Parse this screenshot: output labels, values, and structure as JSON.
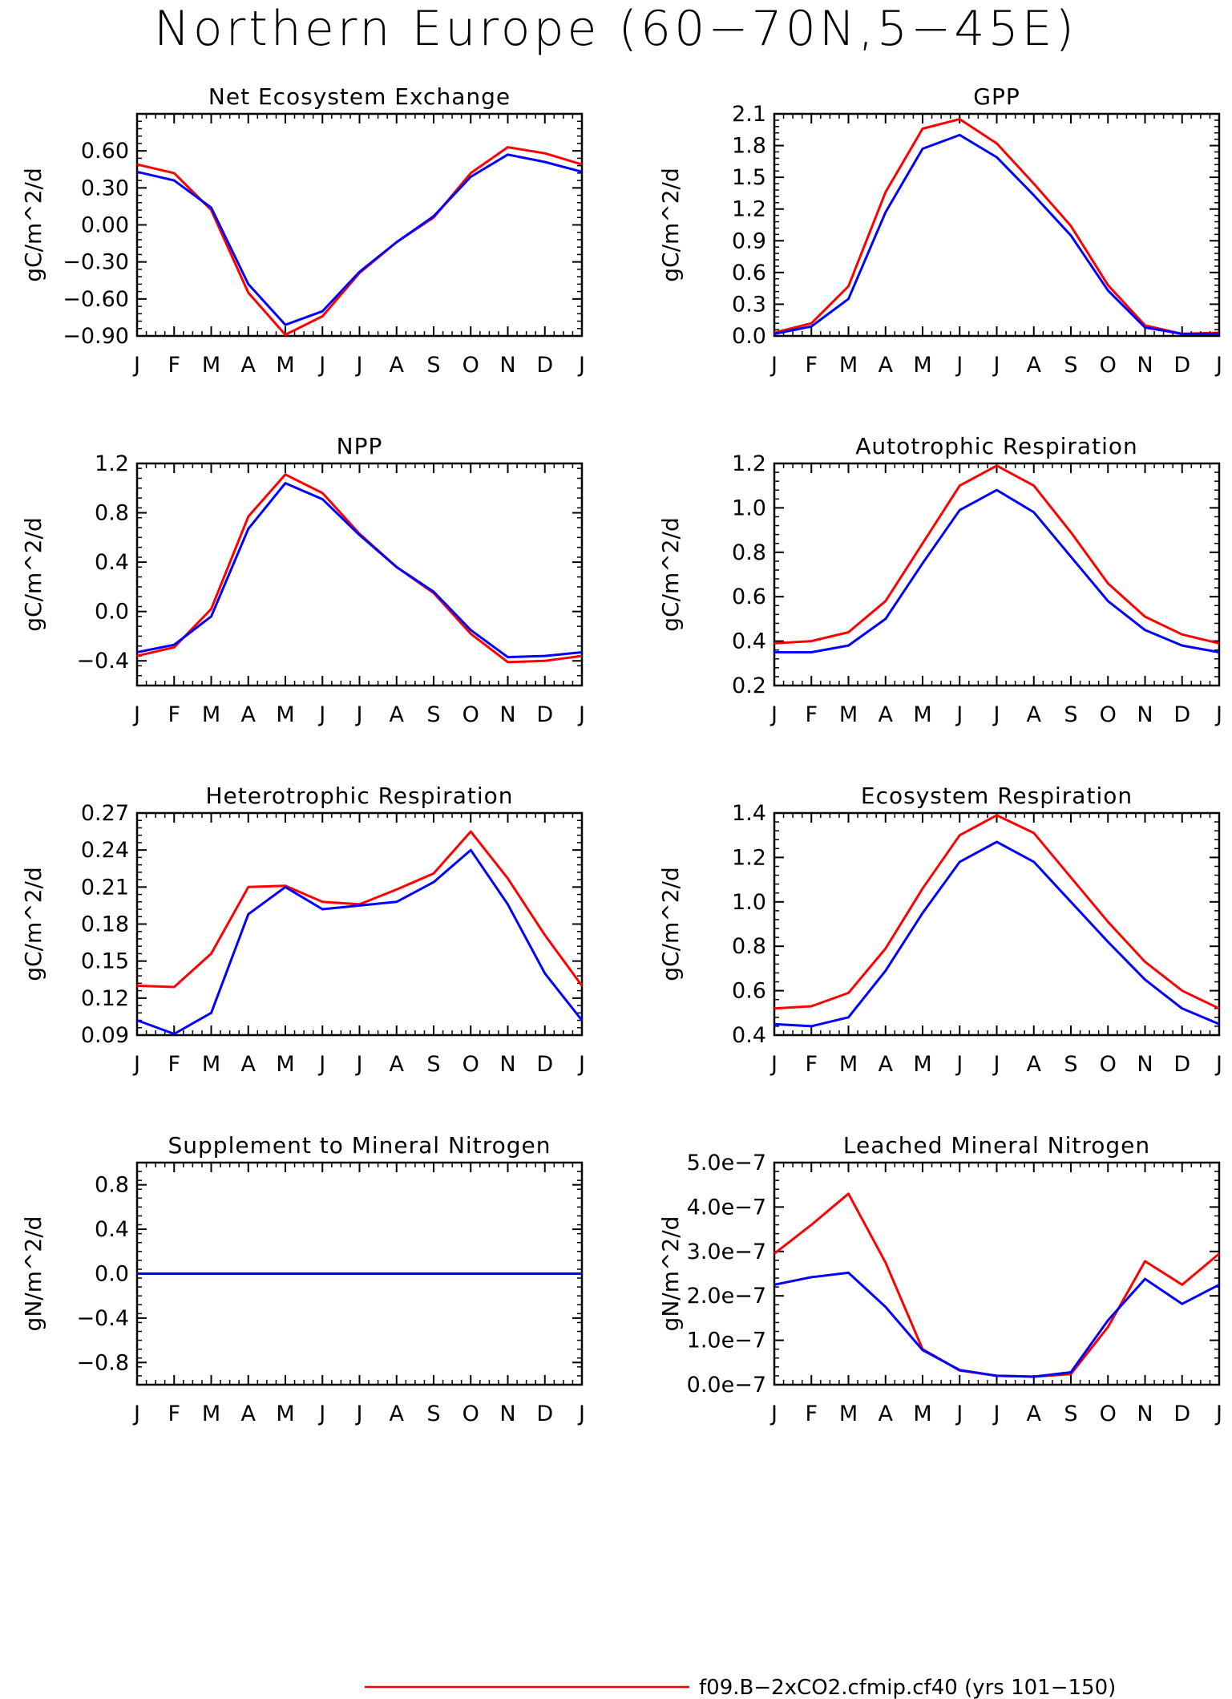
{
  "figure": {
    "title": "Northern Europe (60−70N,5−45E)"
  },
  "legend": [
    {
      "label": "f09.B−2xCO2.cfmip.cf40 (yrs 101−150)",
      "color": "#ff0000"
    }
  ],
  "colors": {
    "red_series": "#ff0000",
    "blue_series": "#0000ff",
    "axes": "#000000"
  },
  "chart_data": [
    {
      "type": "line",
      "title": "Net Ecosystem Exchange",
      "ylabel": "gC/m^2/d",
      "categories": [
        "J",
        "F",
        "M",
        "A",
        "M",
        "J",
        "J",
        "A",
        "S",
        "O",
        "N",
        "D",
        "J"
      ],
      "ylim": [
        -0.9,
        0.9
      ],
      "yticks": [
        -0.9,
        -0.6,
        -0.3,
        0.0,
        0.3,
        0.6
      ],
      "ytick_labels": [
        "−0.90",
        "−0.60",
        "−0.30",
        "0.00",
        "0.30",
        "0.60"
      ],
      "series": [
        {
          "color": "#ff0000",
          "values": [
            0.49,
            0.42,
            0.12,
            -0.55,
            -0.89,
            -0.74,
            -0.39,
            -0.14,
            0.06,
            0.42,
            0.63,
            0.58,
            0.49
          ]
        },
        {
          "color": "#0000ff",
          "values": [
            0.43,
            0.36,
            0.14,
            -0.48,
            -0.81,
            -0.7,
            -0.38,
            -0.14,
            0.07,
            0.39,
            0.57,
            0.51,
            0.43
          ]
        }
      ]
    },
    {
      "type": "line",
      "title": "GPP",
      "ylabel": "gC/m^2/d",
      "categories": [
        "J",
        "F",
        "M",
        "A",
        "M",
        "J",
        "J",
        "A",
        "S",
        "O",
        "N",
        "D",
        "J"
      ],
      "ylim": [
        0.0,
        2.1
      ],
      "yticks": [
        0.0,
        0.3,
        0.6,
        0.9,
        1.2,
        1.5,
        1.8,
        2.1
      ],
      "ytick_labels": [
        "0.0",
        "0.3",
        "0.6",
        "0.9",
        "1.2",
        "1.5",
        "1.8",
        "2.1"
      ],
      "series": [
        {
          "color": "#ff0000",
          "values": [
            0.03,
            0.12,
            0.47,
            1.36,
            1.96,
            2.05,
            1.82,
            1.44,
            1.04,
            0.48,
            0.1,
            0.02,
            0.03
          ]
        },
        {
          "color": "#0000ff",
          "values": [
            0.02,
            0.09,
            0.35,
            1.17,
            1.77,
            1.9,
            1.69,
            1.33,
            0.95,
            0.43,
            0.08,
            0.02,
            0.02
          ]
        }
      ]
    },
    {
      "type": "line",
      "title": "NPP",
      "ylabel": "gC/m^2/d",
      "categories": [
        "J",
        "F",
        "M",
        "A",
        "M",
        "J",
        "J",
        "A",
        "S",
        "O",
        "N",
        "D",
        "J"
      ],
      "ylim": [
        -0.6,
        1.2
      ],
      "yticks": [
        -0.4,
        0.0,
        0.4,
        0.8,
        1.2
      ],
      "ytick_labels": [
        "−0.4",
        "0.0",
        "0.4",
        "0.8",
        "1.2"
      ],
      "series": [
        {
          "color": "#ff0000",
          "values": [
            -0.36,
            -0.29,
            0.02,
            0.77,
            1.11,
            0.96,
            0.63,
            0.36,
            0.15,
            -0.18,
            -0.41,
            -0.4,
            -0.36
          ]
        },
        {
          "color": "#0000ff",
          "values": [
            -0.33,
            -0.27,
            -0.04,
            0.67,
            1.04,
            0.91,
            0.62,
            0.36,
            0.16,
            -0.15,
            -0.37,
            -0.36,
            -0.33
          ]
        }
      ]
    },
    {
      "type": "line",
      "title": "Autotrophic Respiration",
      "ylabel": "gC/m^2/d",
      "categories": [
        "J",
        "F",
        "M",
        "A",
        "M",
        "J",
        "J",
        "A",
        "S",
        "O",
        "N",
        "D",
        "J"
      ],
      "ylim": [
        0.2,
        1.2
      ],
      "yticks": [
        0.2,
        0.4,
        0.6,
        0.8,
        1.0,
        1.2
      ],
      "ytick_labels": [
        "0.2",
        "0.4",
        "0.6",
        "0.8",
        "1.0",
        "1.2"
      ],
      "series": [
        {
          "color": "#ff0000",
          "values": [
            0.39,
            0.4,
            0.44,
            0.58,
            0.84,
            1.1,
            1.19,
            1.1,
            0.89,
            0.66,
            0.51,
            0.43,
            0.39
          ]
        },
        {
          "color": "#0000ff",
          "values": [
            0.35,
            0.35,
            0.38,
            0.5,
            0.75,
            0.99,
            1.08,
            0.98,
            0.78,
            0.58,
            0.45,
            0.38,
            0.35
          ]
        }
      ]
    },
    {
      "type": "line",
      "title": "Heterotrophic Respiration",
      "ylabel": "gC/m^2/d",
      "categories": [
        "J",
        "F",
        "M",
        "A",
        "M",
        "J",
        "J",
        "A",
        "S",
        "O",
        "N",
        "D",
        "J"
      ],
      "ylim": [
        0.09,
        0.27
      ],
      "yticks": [
        0.09,
        0.12,
        0.15,
        0.18,
        0.21,
        0.24,
        0.27
      ],
      "ytick_labels": [
        "0.09",
        "0.12",
        "0.15",
        "0.18",
        "0.21",
        "0.24",
        "0.27"
      ],
      "series": [
        {
          "color": "#ff0000",
          "values": [
            0.13,
            0.129,
            0.156,
            0.21,
            0.211,
            0.198,
            0.196,
            0.208,
            0.221,
            0.255,
            0.217,
            0.171,
            0.13
          ]
        },
        {
          "color": "#0000ff",
          "values": [
            0.102,
            0.091,
            0.108,
            0.188,
            0.21,
            0.192,
            0.195,
            0.198,
            0.214,
            0.24,
            0.196,
            0.14,
            0.102
          ]
        }
      ]
    },
    {
      "type": "line",
      "title": "Ecosystem Respiration",
      "ylabel": "gC/m^2/d",
      "categories": [
        "J",
        "F",
        "M",
        "A",
        "M",
        "J",
        "J",
        "A",
        "S",
        "O",
        "N",
        "D",
        "J"
      ],
      "ylim": [
        0.4,
        1.4
      ],
      "yticks": [
        0.4,
        0.6,
        0.8,
        1.0,
        1.2,
        1.4
      ],
      "ytick_labels": [
        "0.4",
        "0.6",
        "0.8",
        "1.0",
        "1.2",
        "1.4"
      ],
      "series": [
        {
          "color": "#ff0000",
          "values": [
            0.52,
            0.53,
            0.59,
            0.79,
            1.06,
            1.3,
            1.39,
            1.31,
            1.11,
            0.91,
            0.73,
            0.6,
            0.52
          ]
        },
        {
          "color": "#0000ff",
          "values": [
            0.45,
            0.44,
            0.48,
            0.69,
            0.95,
            1.18,
            1.27,
            1.18,
            1.0,
            0.82,
            0.65,
            0.52,
            0.45
          ]
        }
      ]
    },
    {
      "type": "line",
      "title": "Supplement to Mineral Nitrogen",
      "ylabel": "gN/m^2/d",
      "categories": [
        "J",
        "F",
        "M",
        "A",
        "M",
        "J",
        "J",
        "A",
        "S",
        "O",
        "N",
        "D",
        "J"
      ],
      "ylim": [
        -1.0,
        1.0
      ],
      "yticks": [
        -0.8,
        -0.4,
        0.0,
        0.4,
        0.8
      ],
      "ytick_labels": [
        "−0.8",
        "−0.4",
        "0.0",
        "0.4",
        "0.8"
      ],
      "series": [
        {
          "color": "#ff0000",
          "values": [
            0,
            0,
            0,
            0,
            0,
            0,
            0,
            0,
            0,
            0,
            0,
            0,
            0
          ]
        },
        {
          "color": "#0000ff",
          "values": [
            0,
            0,
            0,
            0,
            0,
            0,
            0,
            0,
            0,
            0,
            0,
            0,
            0
          ]
        }
      ]
    },
    {
      "type": "line",
      "title": "Leached Mineral Nitrogen",
      "ylabel": "gN/m^2/d",
      "categories": [
        "J",
        "F",
        "M",
        "A",
        "M",
        "J",
        "J",
        "A",
        "S",
        "O",
        "N",
        "D",
        "J"
      ],
      "ylim": [
        0.0,
        5e-07
      ],
      "yticks": [
        0.0,
        1e-07,
        2e-07,
        3e-07,
        4e-07,
        5e-07
      ],
      "ytick_labels": [
        "0.0e−7",
        "1.0e−7",
        "2.0e−7",
        "3.0e−7",
        "4.0e−7",
        "5.0e−7"
      ],
      "series": [
        {
          "color": "#ff0000",
          "values": [
            2.95e-07,
            3.6e-07,
            4.3e-07,
            2.75e-07,
            8e-08,
            3.2e-08,
            2e-08,
            1.8e-08,
            2.4e-08,
            1.3e-07,
            2.78e-07,
            2.25e-07,
            2.95e-07
          ]
        },
        {
          "color": "#0000ff",
          "values": [
            2.25e-07,
            2.42e-07,
            2.52e-07,
            1.75e-07,
            7.8e-08,
            3.3e-08,
            2e-08,
            1.8e-08,
            2.8e-08,
            1.45e-07,
            2.38e-07,
            1.82e-07,
            2.25e-07
          ]
        }
      ]
    }
  ]
}
